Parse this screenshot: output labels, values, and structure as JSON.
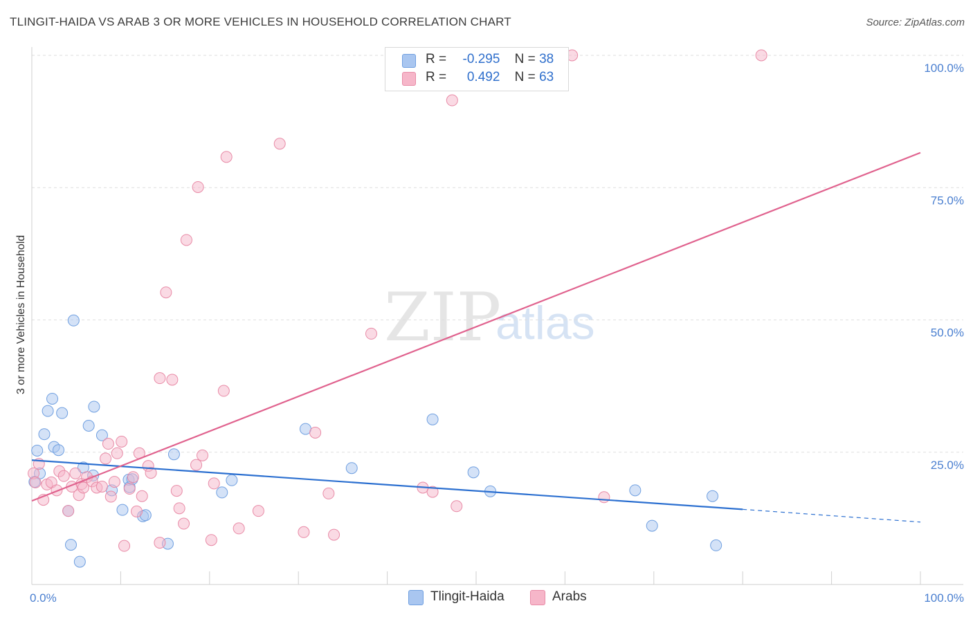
{
  "header": {
    "title": "TLINGIT-HAIDA VS ARAB 3 OR MORE VEHICLES IN HOUSEHOLD CORRELATION CHART",
    "source": "Source: ZipAtlas.com"
  },
  "watermark": {
    "zip": "ZIP",
    "atlas": "atlas"
  },
  "legend": {
    "rows": [
      {
        "r_label": "R =",
        "r_value": "-0.295",
        "n_label": "N =",
        "n_value": "38",
        "color": "#a9c6f0"
      },
      {
        "r_label": "R =",
        "r_value": "0.492",
        "n_label": "N =",
        "n_value": "63",
        "color": "#f6b6c9"
      }
    ]
  },
  "bottom_legend": [
    {
      "label": "Tlingit-Haida",
      "color": "#a9c6f0"
    },
    {
      "label": "Arabs",
      "color": "#f6b6c9"
    }
  ],
  "chart_data": {
    "type": "scatter",
    "ylabel": "3 or more Vehicles in Household",
    "x_tick_labels": [
      "0.0%",
      "100.0%"
    ],
    "y_tick_labels": [
      "25.0%",
      "50.0%",
      "75.0%",
      "100.0%"
    ],
    "xlim": [
      0,
      100
    ],
    "ylim": [
      0,
      100
    ],
    "y_ticks": [
      25,
      50,
      75,
      100
    ],
    "grid": true,
    "legend_position": "top-center",
    "series": [
      {
        "name": "Tlingit-Haida",
        "color": "#a9c6f0",
        "stroke": "#6f9fe0",
        "line_color": "#2b6fd0",
        "trend": {
          "x0": 0,
          "y0": 23.5,
          "x1": 80,
          "y1": 14.2,
          "dash_to": 100,
          "dash_y": 11.8
        },
        "points": [
          [
            0.3,
            19.4
          ],
          [
            0.6,
            25.3
          ],
          [
            0.9,
            21.0
          ],
          [
            1.4,
            28.4
          ],
          [
            1.8,
            32.8
          ],
          [
            2.3,
            35.1
          ],
          [
            2.5,
            26.0
          ],
          [
            3.0,
            25.4
          ],
          [
            3.4,
            32.4
          ],
          [
            4.1,
            13.9
          ],
          [
            4.4,
            7.5
          ],
          [
            4.7,
            49.9
          ],
          [
            5.4,
            4.3
          ],
          [
            5.8,
            22.1
          ],
          [
            6.4,
            30.0
          ],
          [
            6.9,
            20.6
          ],
          [
            7.0,
            33.6
          ],
          [
            7.9,
            28.2
          ],
          [
            9.0,
            17.8
          ],
          [
            10.2,
            14.1
          ],
          [
            10.9,
            19.8
          ],
          [
            11.0,
            18.4
          ],
          [
            11.3,
            19.9
          ],
          [
            12.5,
            12.9
          ],
          [
            12.8,
            13.1
          ],
          [
            15.3,
            7.7
          ],
          [
            16.0,
            24.6
          ],
          [
            21.4,
            17.4
          ],
          [
            22.5,
            19.7
          ],
          [
            30.8,
            29.4
          ],
          [
            36.0,
            22.0
          ],
          [
            45.1,
            31.2
          ],
          [
            49.7,
            21.2
          ],
          [
            51.6,
            17.6
          ],
          [
            67.9,
            17.8
          ],
          [
            69.8,
            11.1
          ],
          [
            76.6,
            16.7
          ],
          [
            77.0,
            7.4
          ]
        ]
      },
      {
        "name": "Arabs",
        "color": "#f6b6c9",
        "stroke": "#e88aa6",
        "line_color": "#e0628e",
        "trend": {
          "x0": 0,
          "y0": 15.8,
          "x1": 100,
          "y1": 81.6
        },
        "points": [
          [
            0.2,
            21.0
          ],
          [
            0.4,
            19.3
          ],
          [
            0.8,
            22.8
          ],
          [
            1.3,
            16.0
          ],
          [
            1.7,
            18.9
          ],
          [
            2.2,
            19.3
          ],
          [
            2.8,
            17.8
          ],
          [
            3.1,
            21.4
          ],
          [
            3.6,
            20.5
          ],
          [
            4.1,
            13.9
          ],
          [
            4.5,
            18.5
          ],
          [
            4.9,
            21.0
          ],
          [
            5.3,
            16.9
          ],
          [
            5.6,
            19.0
          ],
          [
            5.8,
            18.3
          ],
          [
            6.2,
            20.3
          ],
          [
            6.8,
            19.5
          ],
          [
            7.3,
            18.3
          ],
          [
            7.9,
            18.5
          ],
          [
            8.3,
            23.8
          ],
          [
            8.6,
            26.6
          ],
          [
            8.9,
            16.6
          ],
          [
            9.3,
            19.4
          ],
          [
            9.6,
            24.8
          ],
          [
            10.1,
            27.0
          ],
          [
            10.4,
            7.3
          ],
          [
            11.0,
            18.1
          ],
          [
            11.4,
            20.3
          ],
          [
            11.8,
            13.8
          ],
          [
            12.1,
            24.8
          ],
          [
            12.4,
            16.7
          ],
          [
            13.1,
            22.4
          ],
          [
            13.4,
            21.1
          ],
          [
            14.4,
            7.9
          ],
          [
            14.4,
            39.0
          ],
          [
            15.1,
            55.2
          ],
          [
            15.8,
            38.7
          ],
          [
            16.3,
            17.7
          ],
          [
            16.6,
            14.4
          ],
          [
            17.1,
            11.5
          ],
          [
            17.4,
            65.1
          ],
          [
            18.5,
            22.6
          ],
          [
            18.7,
            75.1
          ],
          [
            19.2,
            24.4
          ],
          [
            20.2,
            8.4
          ],
          [
            20.5,
            19.1
          ],
          [
            21.6,
            36.6
          ],
          [
            21.9,
            80.8
          ],
          [
            23.3,
            10.6
          ],
          [
            25.5,
            13.9
          ],
          [
            27.9,
            83.3
          ],
          [
            30.6,
            9.9
          ],
          [
            31.9,
            28.7
          ],
          [
            33.4,
            17.2
          ],
          [
            34.0,
            9.4
          ],
          [
            38.2,
            47.4
          ],
          [
            44.0,
            18.3
          ],
          [
            45.1,
            17.5
          ],
          [
            47.3,
            91.5
          ],
          [
            47.8,
            14.8
          ],
          [
            60.8,
            100.0
          ],
          [
            64.4,
            16.5
          ],
          [
            82.1,
            100.0
          ]
        ]
      }
    ]
  }
}
